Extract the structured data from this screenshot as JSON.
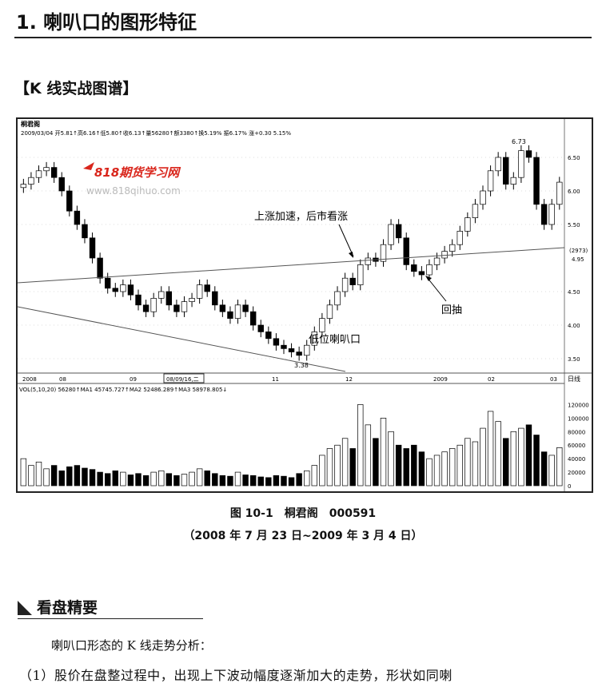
{
  "heading": "1. 喇叭口的图形特征",
  "subheading": "【K 线实战图谱】",
  "chart_header": {
    "name": "桐君阁",
    "info": "2009/03/04 开5.81↑高6.16↑低5.80↑收6.13↑量56280↑额3380↑换5.19% 振6.17% 涨+0.30 5.15%",
    "vol_info": "VOL(5,10,20) 56280↑MA1 45745.727↑MA2 52486.289↑MA3 58978.805↓",
    "date_tag": "08/09/16,二",
    "period": "日线",
    "current_tag": "(2973)",
    "current_price": "4.95"
  },
  "watermark": {
    "brand": "818期货学习网",
    "url": "www.818qihuo.com"
  },
  "annotations": {
    "accel": "上涨加速，后市看涨",
    "pullback": "回抽",
    "low_horn": "低位喇叭口",
    "high": "6.73",
    "low": "3.38"
  },
  "chart_data": {
    "type": "candlestick",
    "x_ticks": [
      "2008",
      "08",
      "09",
      "11",
      "12",
      "2009",
      "02",
      "03"
    ],
    "price_ticks": [
      "6.50",
      "6.00",
      "5.50",
      "4.50",
      "4.00",
      "3.50"
    ],
    "price_range": [
      3.3,
      6.85
    ],
    "volume_ticks": [
      "120000",
      "100000",
      "80000",
      "60000",
      "40000",
      "20000",
      "0"
    ],
    "volume_range": [
      0,
      130000
    ],
    "closes": [
      6.1,
      6.2,
      6.3,
      6.35,
      6.2,
      6.0,
      5.7,
      5.5,
      5.3,
      5.0,
      4.7,
      4.55,
      4.5,
      4.6,
      4.45,
      4.3,
      4.2,
      4.4,
      4.5,
      4.3,
      4.2,
      4.35,
      4.4,
      4.6,
      4.5,
      4.3,
      4.2,
      4.1,
      4.3,
      4.2,
      4.0,
      3.9,
      3.8,
      3.7,
      3.65,
      3.6,
      3.55,
      3.7,
      3.9,
      4.1,
      4.3,
      4.5,
      4.7,
      4.6,
      4.9,
      5.0,
      4.95,
      5.2,
      5.5,
      5.3,
      4.9,
      4.8,
      4.75,
      4.9,
      5.0,
      5.1,
      5.2,
      5.4,
      5.6,
      5.8,
      6.0,
      6.3,
      6.5,
      6.1,
      6.2,
      6.6,
      6.5,
      5.8,
      5.5,
      5.8,
      6.13
    ],
    "volumes": [
      40000,
      30000,
      35000,
      25000,
      30000,
      22000,
      28000,
      30000,
      26000,
      24000,
      20000,
      18000,
      22000,
      20000,
      16000,
      18000,
      15000,
      20000,
      22000,
      18000,
      15000,
      17000,
      20000,
      25000,
      22000,
      18000,
      15000,
      14000,
      20000,
      16000,
      15000,
      13000,
      12000,
      15000,
      14000,
      12000,
      18000,
      22000,
      30000,
      45000,
      55000,
      60000,
      70000,
      55000,
      120000,
      90000,
      70000,
      100000,
      80000,
      60000,
      55000,
      60000,
      50000,
      40000,
      45000,
      50000,
      55000,
      60000,
      70000,
      65000,
      85000,
      110000,
      95000,
      70000,
      80000,
      85000,
      90000,
      75000,
      50000,
      45000,
      56280
    ]
  },
  "caption": "图 10-1　桐君阁　000591",
  "date_range": "（2008 年 7 月 23 日~2009 年 3 月 4 日）",
  "section": "看盘精要",
  "para1": "喇叭口形态的 K 线走势分析：",
  "para2": "（1）股价在盘整过程中，出现上下波动幅度逐渐加大的走势，形状如同喇"
}
